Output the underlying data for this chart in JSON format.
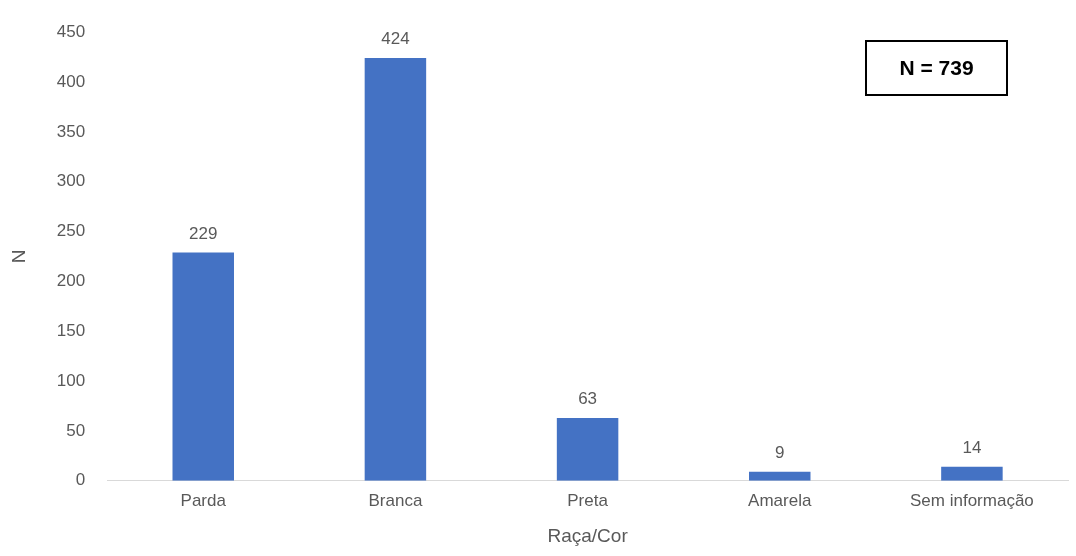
{
  "chart_data": {
    "type": "bar",
    "xlabel": "Raça/Cor",
    "ylabel": "N",
    "categories": [
      "Parda",
      "Branca",
      "Preta",
      "Amarela",
      "Sem informação"
    ],
    "values": [
      229,
      424,
      63,
      9,
      14
    ],
    "color": "#4472c4",
    "ylim": [
      0,
      450
    ],
    "yticks": [
      0,
      50,
      100,
      150,
      200,
      250,
      300,
      350,
      400,
      450
    ],
    "data_labels": true,
    "annotations": [
      "N = 739"
    ]
  }
}
